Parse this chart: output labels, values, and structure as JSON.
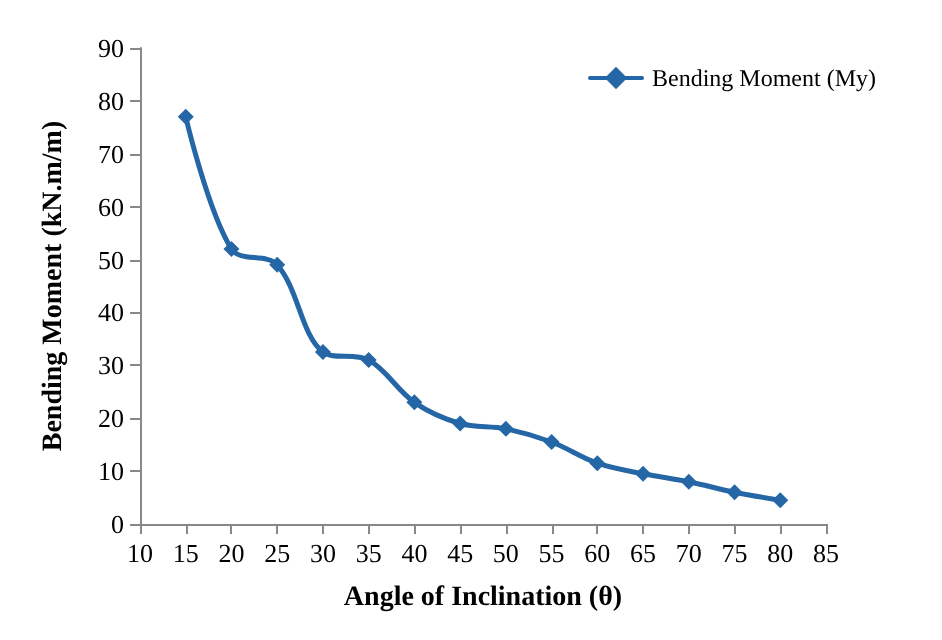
{
  "chart_data": {
    "type": "line",
    "xlabel": "Angle of Inclination (θ)",
    "ylabel": "Bending Moment (kN.m/m)",
    "x": [
      15,
      20,
      25,
      30,
      35,
      40,
      45,
      50,
      55,
      60,
      65,
      70,
      75,
      80
    ],
    "series": [
      {
        "name": "Bending Moment (My)",
        "color": "#2466a6",
        "values": [
          77,
          52,
          49,
          32.5,
          31,
          23,
          19,
          18,
          15.5,
          11.5,
          9.5,
          8,
          6,
          4.5
        ]
      }
    ],
    "xlim": [
      10,
      85
    ],
    "xticks": [
      10,
      15,
      20,
      25,
      30,
      35,
      40,
      45,
      50,
      55,
      60,
      65,
      70,
      75,
      80,
      85
    ],
    "ylim": [
      0,
      90
    ],
    "yticks": [
      0,
      10,
      20,
      30,
      40,
      50,
      60,
      70,
      80,
      90
    ],
    "grid": false,
    "legend": "top right",
    "marker": "diamond",
    "line_style": "solid"
  }
}
